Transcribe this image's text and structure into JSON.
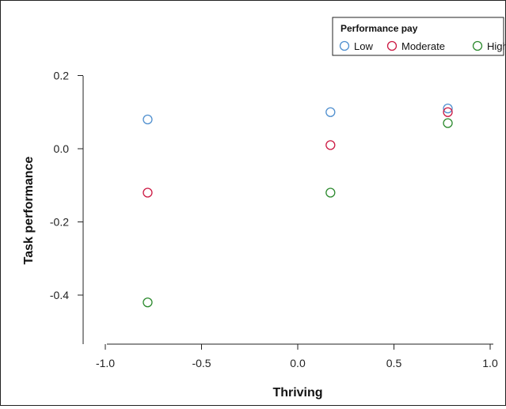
{
  "chart_data": {
    "type": "scatter",
    "xlabel": "Thriving",
    "ylabel": "Task performance",
    "xlim": [
      -1.1,
      1.0
    ],
    "ylim": [
      -0.53,
      0.2
    ],
    "xticks": [
      -1.0,
      -0.5,
      0.0,
      0.5,
      1.0
    ],
    "xtick_labels": [
      "-1.0",
      "-0.5",
      "0.0",
      "0.5",
      "1.0"
    ],
    "yticks": [
      0.2,
      0.0,
      -0.2,
      -0.4
    ],
    "ytick_labels": [
      "0.2",
      "0.0",
      "-0.2",
      "-0.4"
    ],
    "grid": false,
    "legend": {
      "title": "Performance pay",
      "placement": "top-right"
    },
    "series": [
      {
        "name": "Low",
        "color": "#4f8fcf",
        "x": [
          -0.78,
          0.17,
          0.78
        ],
        "y": [
          0.08,
          0.1,
          0.11
        ]
      },
      {
        "name": "Moderate",
        "color": "#cc1a43",
        "x": [
          -0.78,
          0.17,
          0.78
        ],
        "y": [
          -0.12,
          0.01,
          0.1
        ]
      },
      {
        "name": "High",
        "color": "#2c8a2e",
        "x": [
          -0.78,
          0.17,
          0.78
        ],
        "y": [
          -0.42,
          -0.12,
          0.07
        ]
      }
    ]
  }
}
